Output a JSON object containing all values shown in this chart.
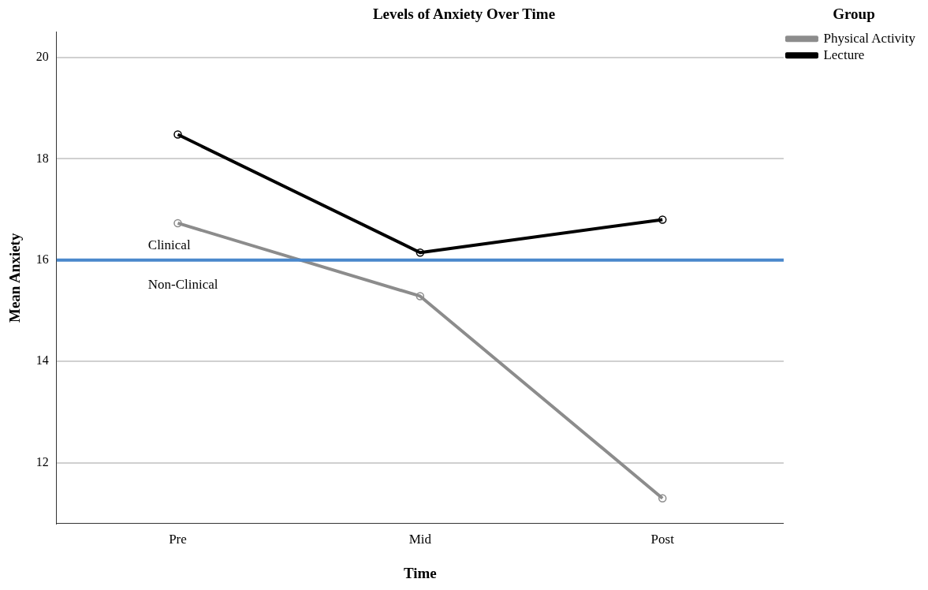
{
  "chart_data": {
    "type": "line",
    "title": "Levels of Anxiety Over Time",
    "xlabel": "Time",
    "ylabel": "Mean Anxiety",
    "legend_title": "Group",
    "categories": [
      "Pre",
      "Mid",
      "Post"
    ],
    "series": [
      {
        "name": "Physical Activity",
        "color": "#8c8c8c",
        "values": [
          16.73,
          15.29,
          11.3
        ]
      },
      {
        "name": "Lecture",
        "color": "#000000",
        "values": [
          18.48,
          16.15,
          16.8
        ]
      }
    ],
    "ylim": [
      10.8,
      20.5
    ],
    "yticks": [
      12,
      14,
      16,
      18,
      20
    ],
    "grid": "y",
    "legend": "top right",
    "marker": "circle",
    "line_style": "solid",
    "ref_lines": [
      {
        "axis": "y",
        "value": 16,
        "color": "#4a88cc"
      }
    ],
    "annotations": [
      "Clinical",
      "Non-Clinical"
    ]
  }
}
